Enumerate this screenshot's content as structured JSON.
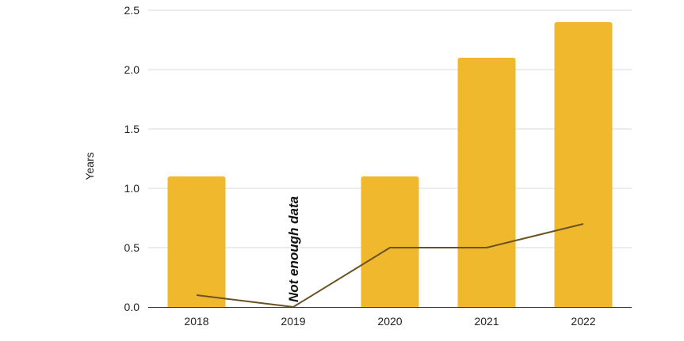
{
  "chart_data": {
    "type": "bar",
    "categories": [
      "2018",
      "2019",
      "2020",
      "2021",
      "2022"
    ],
    "series": [
      {
        "type": "bar",
        "values": [
          1.1,
          null,
          1.1,
          2.1,
          2.4
        ],
        "color": "#F0B92D"
      },
      {
        "type": "line",
        "values": [
          0.1,
          0.0,
          0.5,
          0.5,
          0.7
        ],
        "color": "#6B5223"
      }
    ],
    "annotations": [
      {
        "category": "2019",
        "text": "Not enough data"
      }
    ],
    "xlabel": "",
    "ylabel": "Years",
    "ylim": [
      0,
      2.5
    ],
    "yticks": [
      "0.0",
      "0.5",
      "1.0",
      "1.5",
      "2.0",
      "2.5"
    ],
    "grid": true,
    "legend": "none"
  }
}
